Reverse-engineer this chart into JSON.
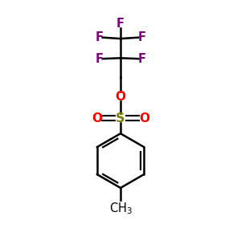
{
  "background_color": "#ffffff",
  "figsize": [
    3.0,
    3.0
  ],
  "dpi": 100,
  "bond_color": "#000000",
  "F_color": "#800080",
  "O_color": "#ff0000",
  "S_color": "#808000",
  "text_color": "#000000",
  "line_width": 1.8,
  "font_size": 10.5,
  "xlim": [
    0,
    10
  ],
  "ylim": [
    0,
    10
  ]
}
